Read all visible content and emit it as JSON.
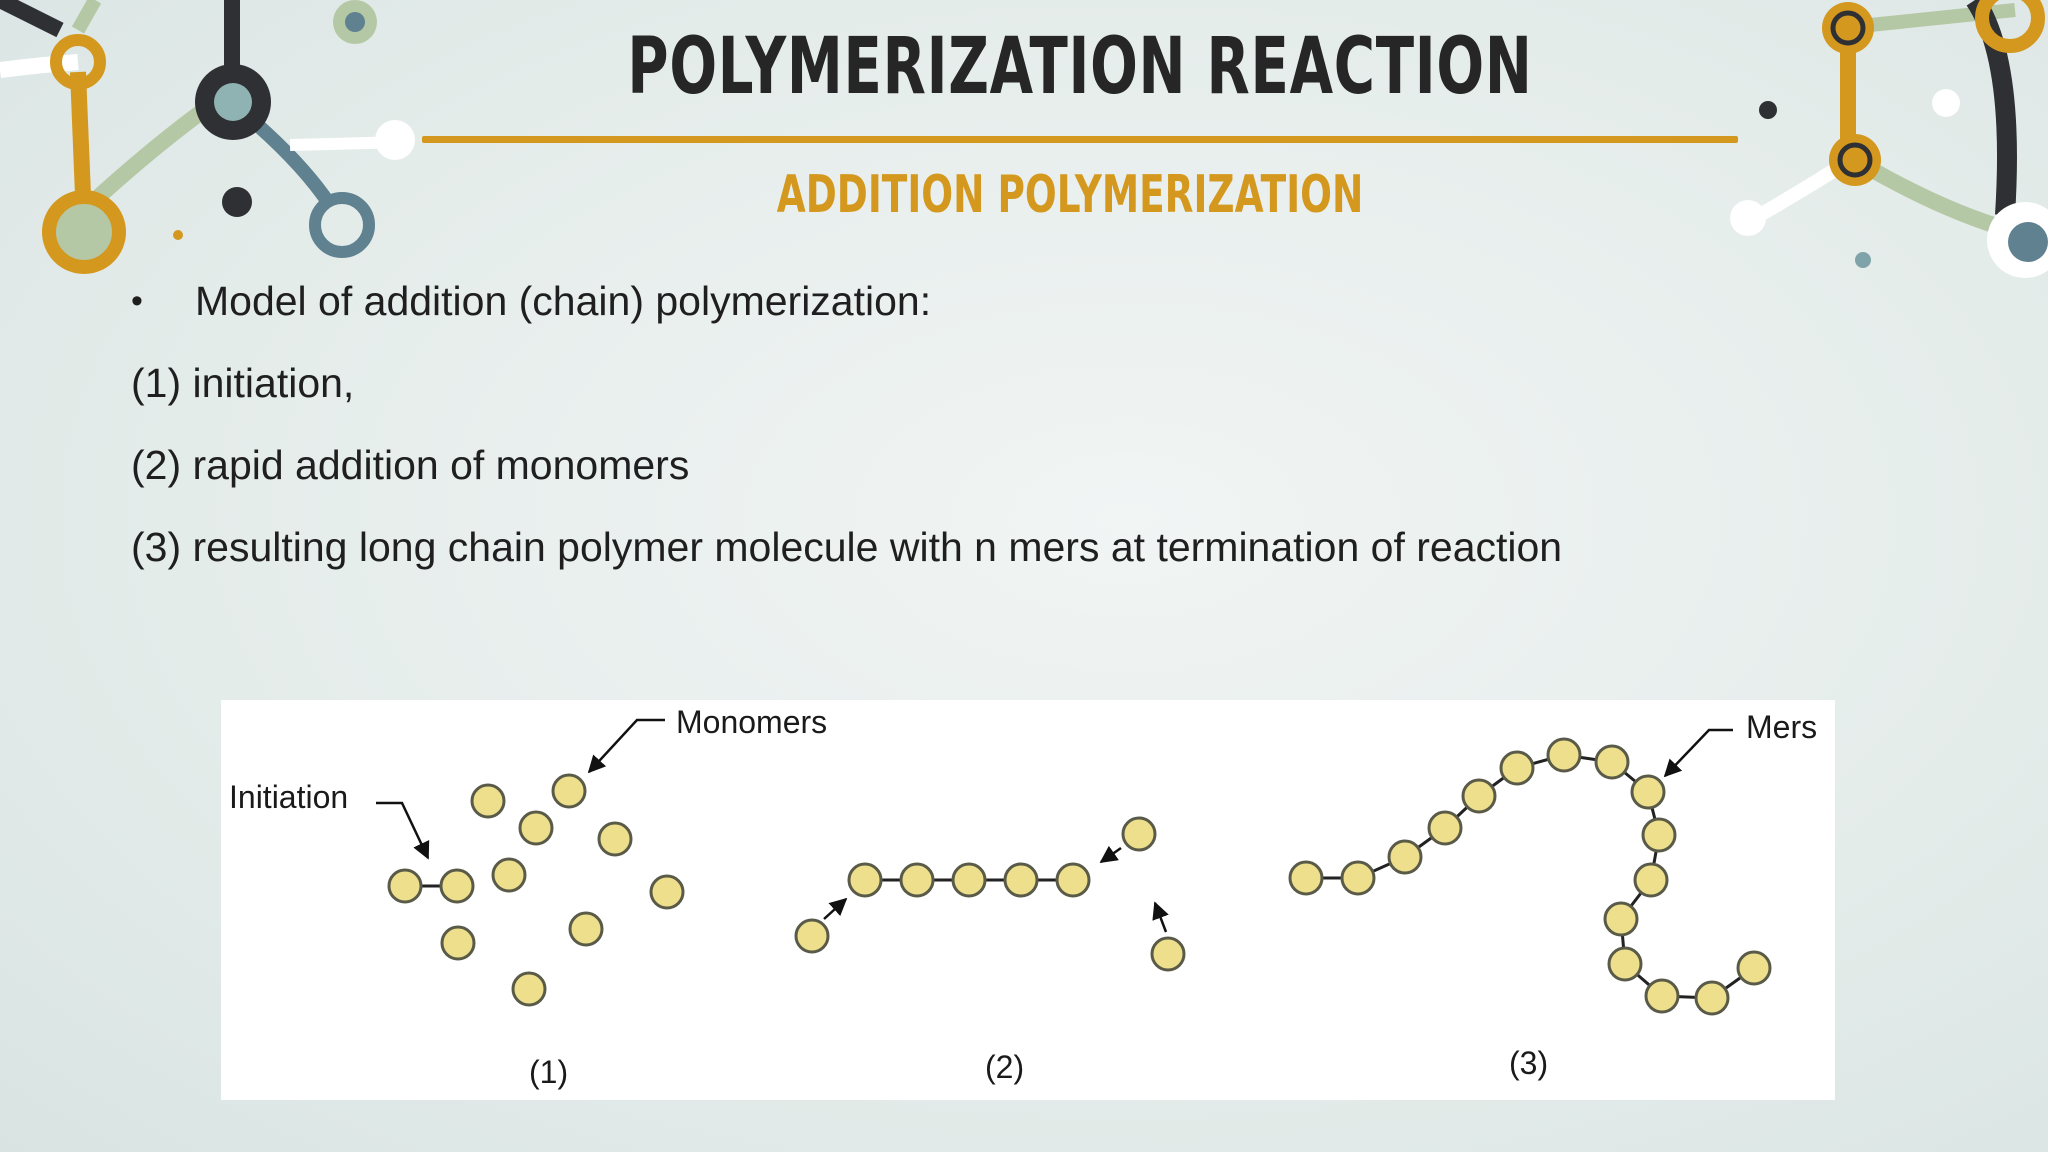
{
  "slide": {
    "title": "POLYMERIZATION REACTION",
    "subtitle": "ADDITION POLYMERIZATION",
    "bullet": "Model of addition (chain) polymerization:",
    "lines": [
      "(1) initiation,",
      "(2) rapid addition of monomers",
      "(3) resulting long chain polymer molecule with n mers at termination of reaction"
    ]
  },
  "diagram": {
    "labels": {
      "initiation": "Initiation",
      "monomers": "Monomers",
      "mers": "Mers"
    },
    "panels": [
      "(1)",
      "(2)",
      "(3)"
    ]
  },
  "colors": {
    "accent": "#d4981f",
    "bead_fill": "#eedf8c",
    "bead_stroke": "#5a5a48",
    "deco_dark": "#2e3033",
    "deco_teal": "#5f8190",
    "deco_sage": "#b4c8a6"
  }
}
